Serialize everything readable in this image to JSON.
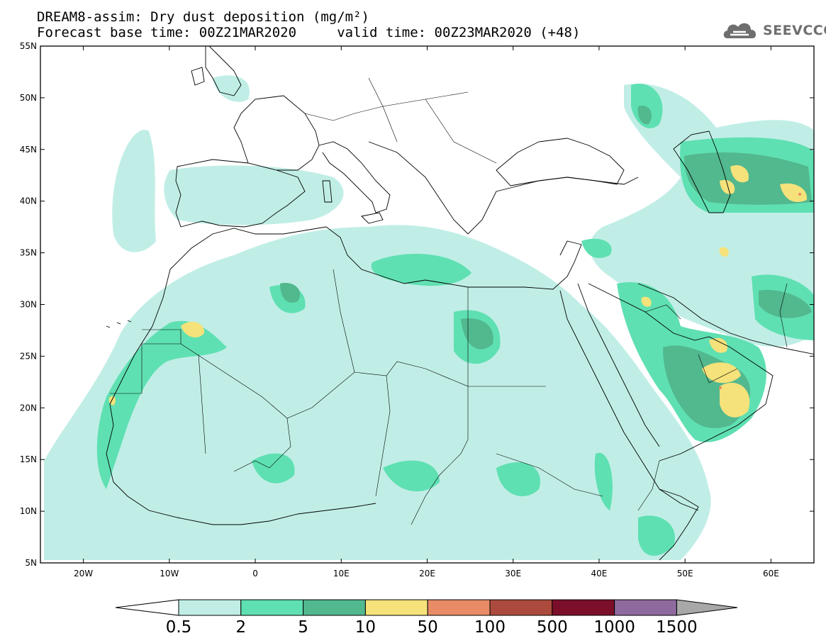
{
  "title": {
    "line1": "DREAM8-assim: Dry dust deposition (mg/m²)",
    "line2": "Forecast base time: 00Z21MAR2020     valid time: 00Z23MAR2020 (+48)"
  },
  "logo": {
    "text": "SEEVCCC",
    "icon": "cloud-logo-icon"
  },
  "map": {
    "lat_range": [
      5,
      55
    ],
    "lon_range": [
      -25,
      65
    ],
    "lat_labels": [
      "55N",
      "50N",
      "45N",
      "40N",
      "35N",
      "30N",
      "25N",
      "20N",
      "15N",
      "10N",
      "5N"
    ],
    "lon_labels": [
      "20W",
      "10W",
      "0",
      "10E",
      "20E",
      "30E",
      "40E",
      "50E",
      "60E"
    ],
    "colors": {
      "frame": "#000000",
      "coast": "#000000",
      "background": "#ffffff"
    }
  },
  "colorbar": {
    "labels": [
      "0.5",
      "2",
      "5",
      "10",
      "50",
      "100",
      "500",
      "1000",
      "1500"
    ],
    "colors": [
      "#ffffff",
      "#c0eee6",
      "#5fe0b2",
      "#52b88e",
      "#f5e27a",
      "#e88b66",
      "#ac4b3d",
      "#7b0f2a",
      "#8e6a9e",
      "#a8a8a8"
    ]
  }
}
